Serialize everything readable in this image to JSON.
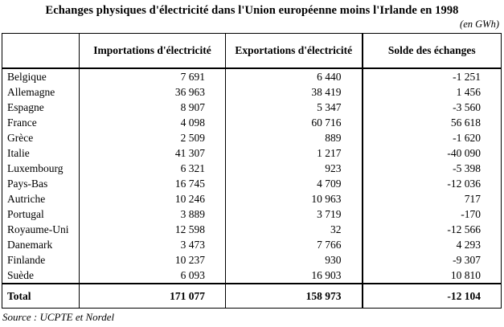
{
  "title": "Echanges physiques d'électricité dans l'Union européenne moins l'Irlande en 1998",
  "unit_note": "(en GWh)",
  "table": {
    "columns": [
      "",
      "Importations d'électricité",
      "Exportations d'électricité",
      "Solde des échanges"
    ],
    "rows": [
      {
        "country": "Belgique",
        "imports": "7 691",
        "exports": "6 440",
        "balance": "-1 251"
      },
      {
        "country": "Allemagne",
        "imports": "36 963",
        "exports": "38 419",
        "balance": "1 456"
      },
      {
        "country": "Espagne",
        "imports": "8 907",
        "exports": "5 347",
        "balance": "-3 560"
      },
      {
        "country": "France",
        "imports": "4 098",
        "exports": "60 716",
        "balance": "56 618"
      },
      {
        "country": "Grèce",
        "imports": "2 509",
        "exports": "889",
        "balance": "-1 620"
      },
      {
        "country": "Italie",
        "imports": "41 307",
        "exports": "1 217",
        "balance": "-40 090"
      },
      {
        "country": "Luxembourg",
        "imports": "6 321",
        "exports": "923",
        "balance": "-5 398"
      },
      {
        "country": "Pays-Bas",
        "imports": "16 745",
        "exports": "4 709",
        "balance": "-12 036"
      },
      {
        "country": "Autriche",
        "imports": "10 246",
        "exports": "10 963",
        "balance": "717"
      },
      {
        "country": "Portugal",
        "imports": "3 889",
        "exports": "3 719",
        "balance": "-170"
      },
      {
        "country": "Royaume-Uni",
        "imports": "12 598",
        "exports": "32",
        "balance": "-12 566"
      },
      {
        "country": "Danemark",
        "imports": "3 473",
        "exports": "7 766",
        "balance": "4 293"
      },
      {
        "country": "Finlande",
        "imports": "10 237",
        "exports": "930",
        "balance": "-9 307"
      },
      {
        "country": "Suède",
        "imports": "6 093",
        "exports": "16 903",
        "balance": "10 810"
      }
    ],
    "total": {
      "label": "Total",
      "imports": "171 077",
      "exports": "158 973",
      "balance": "-12 104"
    }
  },
  "source": "Source : UCPTE et Nordel"
}
